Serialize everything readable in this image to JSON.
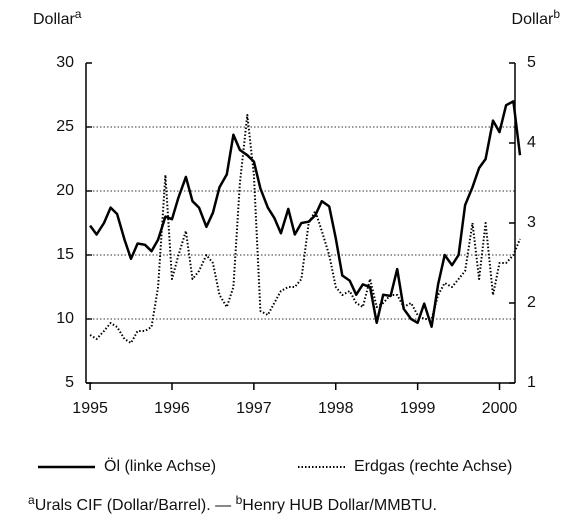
{
  "chart_data": {
    "type": "line",
    "y_label": {
      "text": "Dollar",
      "marker": "a"
    },
    "y2_label": {
      "text": "Dollar",
      "marker": "b"
    },
    "x": [
      1995,
      1995.08,
      1995.17,
      1995.25,
      1995.33,
      1995.42,
      1995.5,
      1995.58,
      1995.67,
      1995.75,
      1995.83,
      1995.92,
      1996,
      1996.08,
      1996.17,
      1996.25,
      1996.33,
      1996.42,
      1996.5,
      1996.58,
      1996.67,
      1996.75,
      1996.83,
      1996.92,
      1997,
      1997.08,
      1997.17,
      1997.25,
      1997.33,
      1997.42,
      1997.5,
      1997.58,
      1997.67,
      1997.75,
      1997.83,
      1997.92,
      1998,
      1998.08,
      1998.17,
      1998.25,
      1998.33,
      1998.42,
      1998.5,
      1998.58,
      1998.67,
      1998.75,
      1998.83,
      1998.92,
      1999,
      1999.08,
      1999.17,
      1999.25,
      1999.33,
      1999.42,
      1999.5,
      1999.58,
      1999.67,
      1999.75,
      1999.83,
      1999.92,
      2000,
      2000.08,
      2000.17,
      2000.25
    ],
    "series": [
      {
        "name": "Öl (linke Achse)",
        "color": "#000000",
        "style": "solid",
        "values": [
          17.3,
          16.6,
          17.5,
          18.7,
          18.2,
          16.2,
          14.7,
          15.9,
          15.8,
          15.3,
          16.2,
          18.0,
          17.8,
          19.5,
          21.1,
          19.2,
          18.7,
          17.2,
          18.3,
          20.3,
          21.3,
          24.4,
          23.2,
          22.8,
          22.3,
          20.2,
          18.7,
          17.9,
          16.7,
          18.6,
          16.6,
          17.5,
          17.6,
          18.1,
          19.2,
          18.8,
          16.3,
          13.4,
          13.0,
          11.9,
          12.7,
          12.5,
          9.7,
          11.9,
          11.8,
          13.9,
          10.8,
          10.0,
          9.7,
          11.2,
          9.4,
          12.7,
          15.0,
          14.2,
          15.0,
          18.9,
          20.3,
          21.8,
          22.5,
          25.5,
          24.6,
          26.7,
          27.0,
          22.8
        ]
      },
      {
        "name": "Erdgas (rechte Achse)",
        "color": "#000000",
        "style": "dotted",
        "axis": "y2",
        "values": [
          1.6,
          1.55,
          1.65,
          1.75,
          1.7,
          1.55,
          1.5,
          1.65,
          1.65,
          1.7,
          2.2,
          3.6,
          2.3,
          2.6,
          2.9,
          2.3,
          2.4,
          2.6,
          2.5,
          2.1,
          1.95,
          2.2,
          3.5,
          4.35,
          3.6,
          1.9,
          1.85,
          2.0,
          2.15,
          2.2,
          2.2,
          2.3,
          3.0,
          3.15,
          2.9,
          2.6,
          2.2,
          2.1,
          2.15,
          2.0,
          1.95,
          2.3,
          1.95,
          2.0,
          2.1,
          2.1,
          1.95,
          2.0,
          1.85,
          1.8,
          1.8,
          2.1,
          2.25,
          2.2,
          2.3,
          2.4,
          3.0,
          2.3,
          3.0,
          2.1,
          2.5,
          2.5,
          2.6,
          2.8
        ]
      }
    ],
    "xlim": [
      1994.95,
      2000.25
    ],
    "xticks": [
      1995,
      1996,
      1997,
      1998,
      1999,
      2000
    ],
    "ylim": [
      5,
      30
    ],
    "yticks": [
      5,
      10,
      15,
      20,
      25,
      30
    ],
    "y2lim": [
      1,
      5
    ],
    "y2ticks": [
      1,
      2,
      3,
      4,
      5
    ],
    "grid": true,
    "footnotes": [
      {
        "marker": "a",
        "text": "Urals CIF (Dollar/Barrel). — "
      },
      {
        "marker": "b",
        "text": "Henry HUB Dollar/MMBTU."
      }
    ]
  }
}
